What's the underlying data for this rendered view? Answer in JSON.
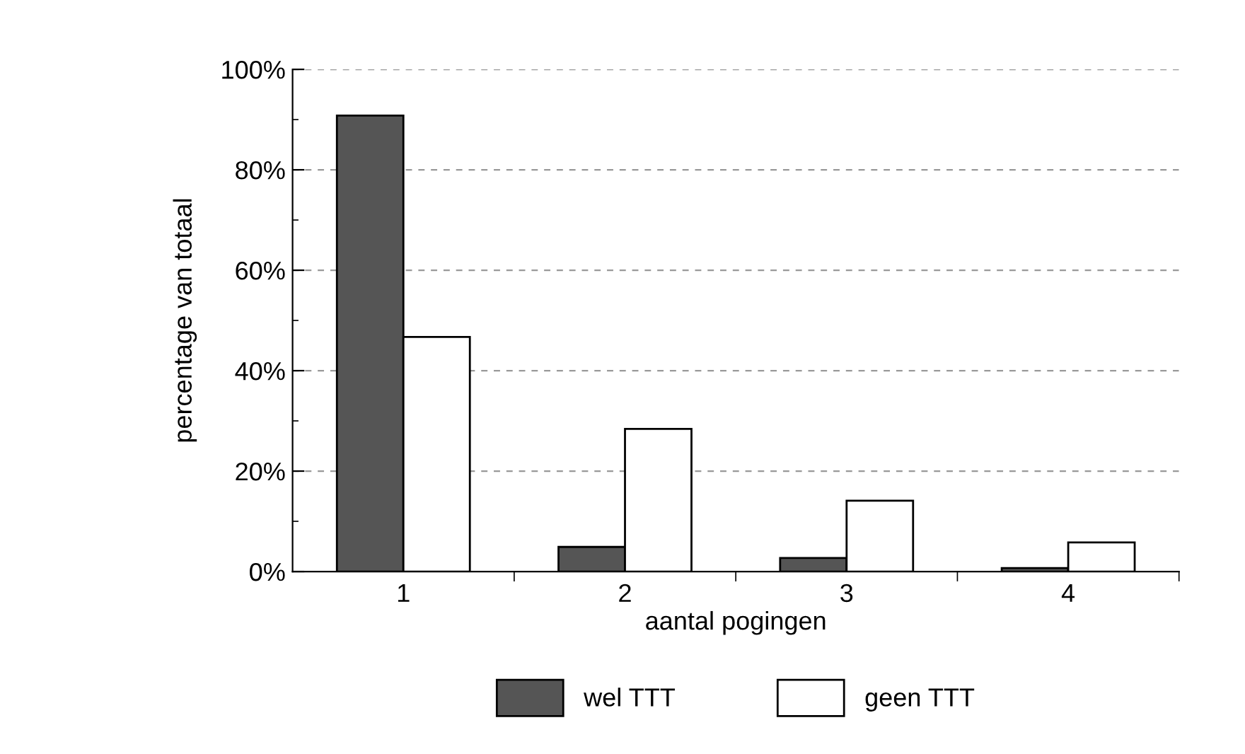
{
  "chart_data": {
    "type": "bar",
    "xlabel": "aantal pogingen",
    "ylabel": "percentage van totaal",
    "categories": [
      "1",
      "2",
      "3",
      "4"
    ],
    "series": [
      {
        "name": "wel TTT",
        "color": "#555555",
        "values": [
          90.8,
          4.9,
          2.7,
          0.7
        ]
      },
      {
        "name": "geen TTT",
        "color": "#ffffff",
        "values": [
          46.7,
          28.4,
          14.1,
          5.8
        ]
      }
    ],
    "ylim": [
      0,
      100
    ],
    "yticks": [
      {
        "value": 0,
        "label": "0%"
      },
      {
        "value": 20,
        "label": "20%"
      },
      {
        "value": 40,
        "label": "40%"
      },
      {
        "value": 60,
        "label": "60%"
      },
      {
        "value": 80,
        "label": "80%"
      },
      {
        "value": 100,
        "label": "100%"
      }
    ],
    "grid": "y",
    "legend": "bottom"
  }
}
